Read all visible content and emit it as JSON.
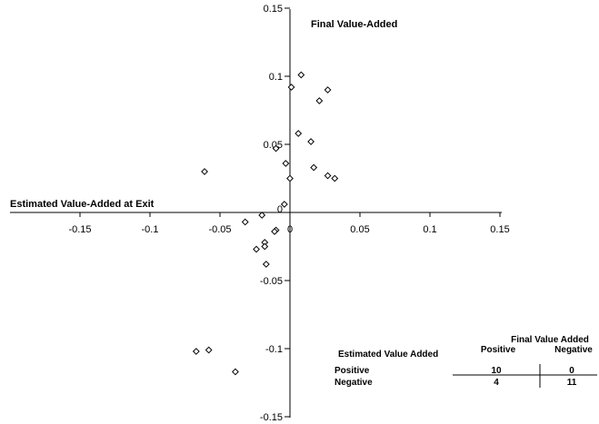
{
  "chart_data": {
    "type": "scatter",
    "xlabel": "Estimated Value-Added at Exit",
    "ylabel": "Final Value-Added",
    "xlim": [
      -0.15,
      0.15
    ],
    "ylim": [
      -0.15,
      0.15
    ],
    "x_ticks": [
      "-0.15",
      "-0.1",
      "-0.05",
      "0",
      "0.05",
      "0.1",
      "0.15"
    ],
    "y_ticks": [
      "0.15",
      "0.1",
      "0.05",
      "0",
      "-0.05",
      "-0.1",
      "-0.15"
    ],
    "marker": "diamond-open",
    "grid": false,
    "points": [
      {
        "x": 0.008,
        "y": 0.101
      },
      {
        "x": 0.001,
        "y": 0.092
      },
      {
        "x": 0.027,
        "y": 0.09
      },
      {
        "x": 0.021,
        "y": 0.082
      },
      {
        "x": 0.006,
        "y": 0.058
      },
      {
        "x": 0.015,
        "y": 0.052
      },
      {
        "x": -0.01,
        "y": 0.047
      },
      {
        "x": -0.003,
        "y": 0.036
      },
      {
        "x": 0.017,
        "y": 0.033
      },
      {
        "x": -0.061,
        "y": 0.03
      },
      {
        "x": 0.027,
        "y": 0.027
      },
      {
        "x": 0.032,
        "y": 0.025
      },
      {
        "x": 0.0,
        "y": 0.025
      },
      {
        "x": -0.004,
        "y": 0.006
      },
      {
        "x": -0.02,
        "y": -0.002
      },
      {
        "x": -0.032,
        "y": -0.007
      },
      {
        "x": -0.01,
        "y": -0.013
      },
      {
        "x": -0.011,
        "y": -0.014
      },
      {
        "x": -0.018,
        "y": -0.022
      },
      {
        "x": -0.018,
        "y": -0.025
      },
      {
        "x": -0.024,
        "y": -0.027
      },
      {
        "x": -0.017,
        "y": -0.038
      },
      {
        "x": -0.067,
        "y": -0.102
      },
      {
        "x": -0.058,
        "y": -0.101
      },
      {
        "x": -0.039,
        "y": -0.117
      }
    ],
    "table": {
      "title": "Final Value Added",
      "row_header": "Estimated Value Added",
      "columns": [
        "Positive",
        "Negative"
      ],
      "rows": [
        {
          "label": "Positive",
          "values": [
            "10",
            "0"
          ]
        },
        {
          "label": "Negative",
          "values": [
            "4",
            "11"
          ]
        }
      ]
    }
  }
}
